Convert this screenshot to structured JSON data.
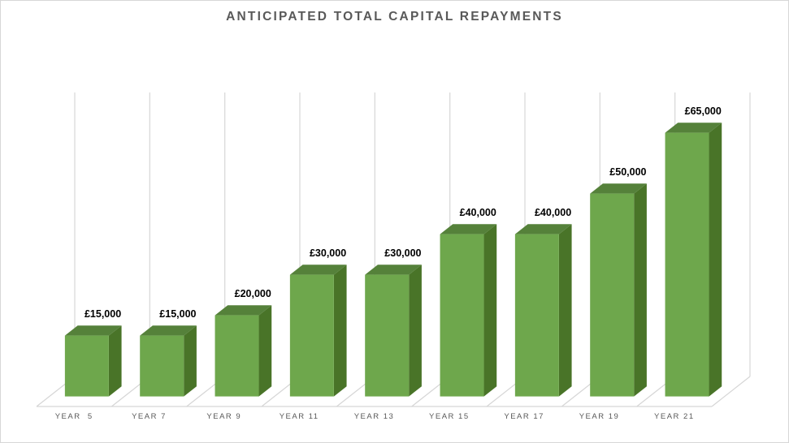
{
  "window": {
    "background": "#FFFFFF",
    "border_color": "#D7D7D7"
  },
  "chart_data": {
    "type": "bar",
    "subtype": "3d-clustered-column",
    "title": "ANTICIPATED TOTAL CAPITAL REPAYMENTS",
    "categories": [
      "YEAR  5",
      "YEAR 7",
      "YEAR 9",
      "YEAR 11",
      "YEAR 13",
      "YEAR 15",
      "YEAR 17",
      "YEAR 19",
      "YEAR 21"
    ],
    "values": [
      15000,
      15000,
      20000,
      30000,
      30000,
      40000,
      40000,
      50000,
      65000
    ],
    "data_labels": [
      "£15,000",
      "£15,000",
      "£20,000",
      "£30,000",
      "£30,000",
      "£40,000",
      "£40,000",
      "£50,000",
      "£65,000"
    ],
    "currency": "£",
    "xlabel": "",
    "ylabel": "",
    "ylim": [
      0,
      70000
    ],
    "value_axis_labels_visible": false,
    "category_axis_labels_visible": true,
    "grid": "vertical category gridlines on back wall",
    "legend_position": "none",
    "colors": {
      "bar_front": "#6EA74C",
      "bar_top": "#55813A",
      "bar_side": "#497428",
      "gridline": "#DADADA",
      "floor_line": "#D6D6D6",
      "title": "#595959",
      "axis_label": "#595959",
      "data_label": "#000000",
      "background": "#FFFFFF"
    }
  }
}
